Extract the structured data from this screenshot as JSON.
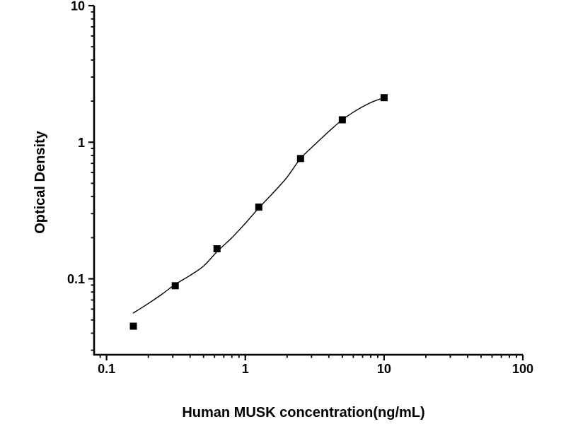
{
  "figure": {
    "background_color": "#ffffff",
    "foreground_color": "#000000"
  },
  "chart_data": {
    "type": "scatter",
    "title": "",
    "xlabel": "Human MUSK concentration(ng/mL)",
    "ylabel": "Optical Density",
    "x_scale": "log",
    "y_scale": "log",
    "xlim": [
      0.0813,
      100
    ],
    "ylim": [
      0.0278,
      10
    ],
    "x_major_ticks": [
      0.1,
      1,
      10,
      100
    ],
    "x_tick_labels": [
      "0.1",
      "1",
      "10",
      "100"
    ],
    "y_major_ticks": [
      0.1,
      1,
      10
    ],
    "y_tick_labels": [
      "0.1",
      "1",
      "10"
    ],
    "grid": false,
    "legend_position": "none",
    "axis_color": "#000000",
    "series": [
      {
        "name": "standard-points",
        "type": "scatter",
        "marker": "filled-square",
        "marker_size": 10,
        "color": "#000000",
        "points": [
          [
            0.156,
            0.045
          ],
          [
            0.3125,
            0.089
          ],
          [
            0.625,
            0.166
          ],
          [
            1.25,
            0.335
          ],
          [
            2.5,
            0.76
          ],
          [
            5,
            1.46
          ],
          [
            10,
            2.12
          ]
        ]
      },
      {
        "name": "4pl-fit-curve",
        "type": "line",
        "color": "#000000",
        "line_width": 1.4,
        "points": [
          [
            0.155,
            0.056
          ],
          [
            0.2,
            0.066
          ],
          [
            0.25,
            0.077
          ],
          [
            0.3125,
            0.091
          ],
          [
            0.4,
            0.106
          ],
          [
            0.5,
            0.124
          ],
          [
            0.625,
            0.158
          ],
          [
            0.8,
            0.2
          ],
          [
            1.0,
            0.255
          ],
          [
            1.25,
            0.33
          ],
          [
            1.6,
            0.43
          ],
          [
            2.0,
            0.555
          ],
          [
            2.5,
            0.76
          ],
          [
            3.2,
            0.97
          ],
          [
            4.0,
            1.2
          ],
          [
            5.0,
            1.46
          ],
          [
            6.3,
            1.71
          ],
          [
            8.0,
            1.95
          ],
          [
            10,
            2.12
          ]
        ]
      }
    ]
  }
}
